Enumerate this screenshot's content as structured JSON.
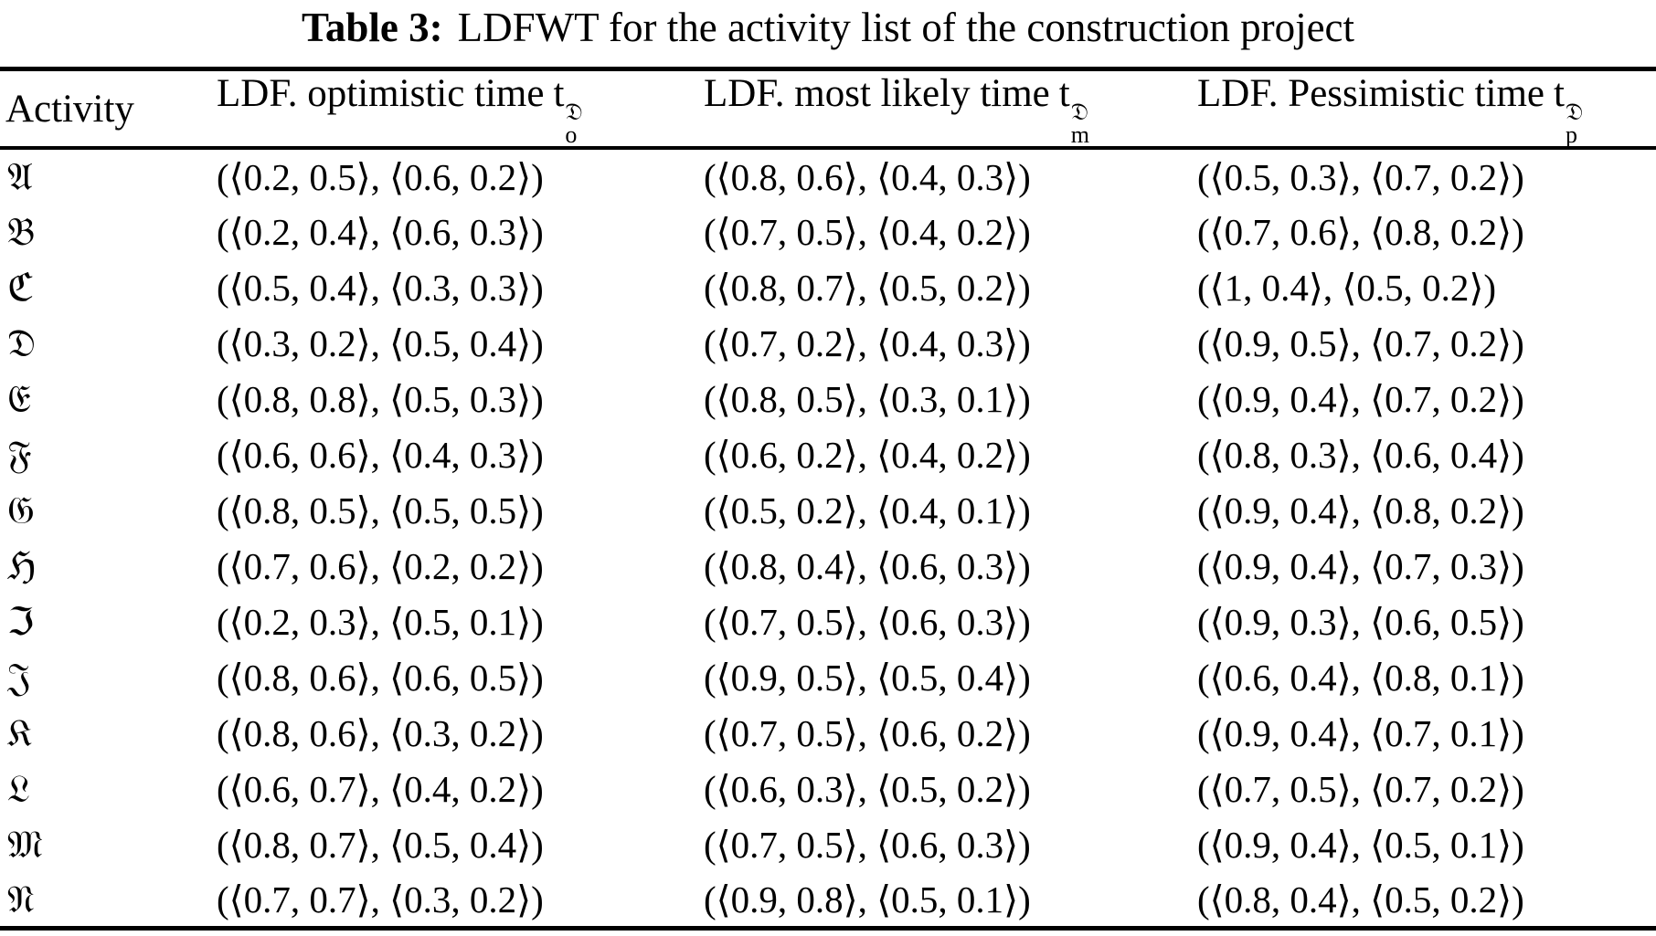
{
  "table": {
    "caption": {
      "label": "Table 3:",
      "text": "LDFWT for the activity list of the construction project"
    },
    "columns": [
      {
        "label": "Activity"
      },
      {
        "label": "LDF. optimistic time",
        "base": "t",
        "sup": "𝔇",
        "sub": "o"
      },
      {
        "label": "LDF. most likely time",
        "base": "t",
        "sup": "𝔇",
        "sub": "m"
      },
      {
        "label": "LDF. Pessimistic time",
        "base": "t",
        "sup": "𝔇",
        "sub": "p"
      }
    ],
    "rows": [
      {
        "activity": "𝔄",
        "optimistic": "(⟨0.2, 0.5⟩, ⟨0.6, 0.2⟩)",
        "most_likely": "(⟨0.8, 0.6⟩, ⟨0.4, 0.3⟩)",
        "pessimistic": "(⟨0.5, 0.3⟩, ⟨0.7, 0.2⟩)"
      },
      {
        "activity": "𝔅",
        "optimistic": "(⟨0.2, 0.4⟩, ⟨0.6, 0.3⟩)",
        "most_likely": "(⟨0.7, 0.5⟩, ⟨0.4, 0.2⟩)",
        "pessimistic": "(⟨0.7, 0.6⟩, ⟨0.8, 0.2⟩)"
      },
      {
        "activity": "ℭ",
        "optimistic": "(⟨0.5, 0.4⟩, ⟨0.3, 0.3⟩)",
        "most_likely": "(⟨0.8, 0.7⟩, ⟨0.5, 0.2⟩)",
        "pessimistic": "(⟨1, 0.4⟩, ⟨0.5, 0.2⟩)"
      },
      {
        "activity": "𝔇",
        "optimistic": "(⟨0.3, 0.2⟩, ⟨0.5, 0.4⟩)",
        "most_likely": "(⟨0.7, 0.2⟩, ⟨0.4, 0.3⟩)",
        "pessimistic": "(⟨0.9, 0.5⟩, ⟨0.7, 0.2⟩)"
      },
      {
        "activity": "𝔈",
        "optimistic": "(⟨0.8, 0.8⟩, ⟨0.5, 0.3⟩)",
        "most_likely": "(⟨0.8, 0.5⟩, ⟨0.3, 0.1⟩)",
        "pessimistic": "(⟨0.9, 0.4⟩, ⟨0.7, 0.2⟩)"
      },
      {
        "activity": "𝔉",
        "optimistic": "(⟨0.6, 0.6⟩, ⟨0.4, 0.3⟩)",
        "most_likely": "(⟨0.6, 0.2⟩, ⟨0.4, 0.2⟩)",
        "pessimistic": "(⟨0.8, 0.3⟩, ⟨0.6, 0.4⟩)"
      },
      {
        "activity": "𝔊",
        "optimistic": "(⟨0.8, 0.5⟩, ⟨0.5, 0.5⟩)",
        "most_likely": "(⟨0.5, 0.2⟩, ⟨0.4, 0.1⟩)",
        "pessimistic": "(⟨0.9, 0.4⟩, ⟨0.8, 0.2⟩)"
      },
      {
        "activity": "ℌ",
        "optimistic": "(⟨0.7, 0.6⟩, ⟨0.2, 0.2⟩)",
        "most_likely": "(⟨0.8, 0.4⟩, ⟨0.6, 0.3⟩)",
        "pessimistic": "(⟨0.9, 0.4⟩, ⟨0.7, 0.3⟩)"
      },
      {
        "activity": "ℑ",
        "optimistic": "(⟨0.2, 0.3⟩, ⟨0.5, 0.1⟩)",
        "most_likely": "(⟨0.7, 0.5⟩, ⟨0.6, 0.3⟩)",
        "pessimistic": "(⟨0.9, 0.3⟩, ⟨0.6, 0.5⟩)"
      },
      {
        "activity": "𝔍",
        "optimistic": "(⟨0.8, 0.6⟩, ⟨0.6, 0.5⟩)",
        "most_likely": "(⟨0.9, 0.5⟩, ⟨0.5, 0.4⟩)",
        "pessimistic": "(⟨0.6, 0.4⟩, ⟨0.8, 0.1⟩)"
      },
      {
        "activity": "𝔎",
        "optimistic": "(⟨0.8, 0.6⟩, ⟨0.3, 0.2⟩)",
        "most_likely": "(⟨0.7, 0.5⟩, ⟨0.6, 0.2⟩)",
        "pessimistic": "(⟨0.9, 0.4⟩, ⟨0.7, 0.1⟩)"
      },
      {
        "activity": "𝔏",
        "optimistic": "(⟨0.6, 0.7⟩, ⟨0.4, 0.2⟩)",
        "most_likely": "(⟨0.6, 0.3⟩, ⟨0.5, 0.2⟩)",
        "pessimistic": "(⟨0.7, 0.5⟩, ⟨0.7, 0.2⟩)"
      },
      {
        "activity": "𝔐",
        "optimistic": "(⟨0.8, 0.7⟩, ⟨0.5, 0.4⟩)",
        "most_likely": "(⟨0.7, 0.5⟩, ⟨0.6, 0.3⟩)",
        "pessimistic": "(⟨0.9, 0.4⟩, ⟨0.5, 0.1⟩)"
      },
      {
        "activity": "𝔑",
        "optimistic": "(⟨0.7, 0.7⟩, ⟨0.3, 0.2⟩)",
        "most_likely": "(⟨0.9, 0.8⟩, ⟨0.5, 0.1⟩)",
        "pessimistic": "(⟨0.8, 0.4⟩, ⟨0.5, 0.2⟩)"
      }
    ],
    "colors": {
      "text": "#000000",
      "background": "#ffffff",
      "rule": "#000000"
    }
  }
}
